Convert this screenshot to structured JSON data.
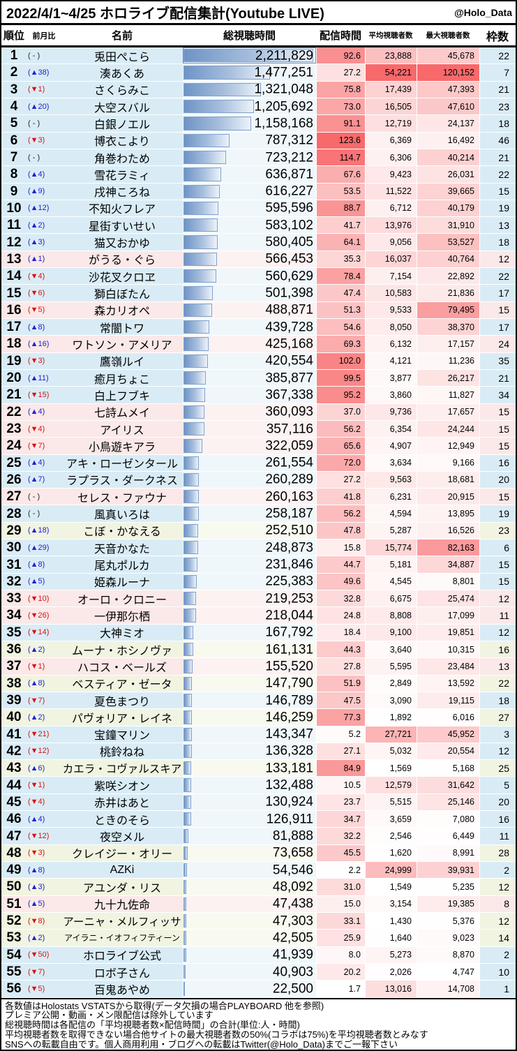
{
  "page": {
    "title": "2022/4/1~4/25 ホロライブ配信集計(Youtube LIVE)",
    "handle": "@Holo_Data"
  },
  "colors": {
    "group_fill": {
      "jp": "#d9ecf6",
      "en": "#fbe8e8",
      "id": "#f0f4e1"
    },
    "bar_cell_fill": {
      "jp": "#eff7fb",
      "en": "#fdf2f2",
      "id": "#f8faf0"
    },
    "heat_max": "#f8696b",
    "heat_min": "#ffffff",
    "bar_color": "#6e93c5",
    "bar_border": "#7fa1cd",
    "up_color": "#2222cc",
    "down_color": "#dd1111"
  },
  "chart_data": {
    "type": "table",
    "title": "2022/4/1~4/25 ホロライブ配信集計(Youtube LIVE)",
    "columns": [
      "順位",
      "前月比",
      "名前",
      "総視聴時間",
      "配信時間",
      "平均視聴者数",
      "最大視聴者数",
      "枠数"
    ],
    "notes": "総視聴時間 column shows a blue data bar scaled to max value; 配信時間/平均視聴者数/最大視聴者数 use white→red color scale; row fill = branch (jp/en/id)",
    "rows": [
      {
        "rank": 1,
        "change": 0,
        "name": "兎田ぺこら",
        "group": "jp",
        "view_time": 2211829,
        "hours": 92.6,
        "avg_viewers": 23888,
        "max_viewers": 45678,
        "slots": 22
      },
      {
        "rank": 2,
        "change": 38,
        "name": "湊あくあ",
        "group": "jp",
        "view_time": 1477251,
        "hours": 27.2,
        "avg_viewers": 54221,
        "max_viewers": 120152,
        "slots": 7
      },
      {
        "rank": 3,
        "change": -1,
        "name": "さくらみこ",
        "group": "jp",
        "view_time": 1321048,
        "hours": 75.8,
        "avg_viewers": 17439,
        "max_viewers": 47393,
        "slots": 21
      },
      {
        "rank": 4,
        "change": 20,
        "name": "大空スバル",
        "group": "jp",
        "view_time": 1205692,
        "hours": 73.0,
        "avg_viewers": 16505,
        "max_viewers": 47610,
        "slots": 23
      },
      {
        "rank": 5,
        "change": 0,
        "name": "白銀ノエル",
        "group": "jp",
        "view_time": 1158168,
        "hours": 91.1,
        "avg_viewers": 12719,
        "max_viewers": 24137,
        "slots": 18
      },
      {
        "rank": 6,
        "change": -3,
        "name": "博衣こより",
        "group": "jp",
        "view_time": 787312,
        "hours": 123.6,
        "avg_viewers": 6369,
        "max_viewers": 16492,
        "slots": 46
      },
      {
        "rank": 7,
        "change": 0,
        "name": "角巻わため",
        "group": "jp",
        "view_time": 723212,
        "hours": 114.7,
        "avg_viewers": 6306,
        "max_viewers": 40214,
        "slots": 21
      },
      {
        "rank": 8,
        "change": 4,
        "name": "雪花ラミィ",
        "group": "jp",
        "view_time": 636871,
        "hours": 67.6,
        "avg_viewers": 9423,
        "max_viewers": 26031,
        "slots": 22
      },
      {
        "rank": 9,
        "change": 9,
        "name": "戌神ころね",
        "group": "jp",
        "view_time": 616227,
        "hours": 53.5,
        "avg_viewers": 11522,
        "max_viewers": 39665,
        "slots": 15
      },
      {
        "rank": 10,
        "change": 12,
        "name": "不知火フレア",
        "group": "jp",
        "view_time": 595596,
        "hours": 88.7,
        "avg_viewers": 6712,
        "max_viewers": 40179,
        "slots": 19
      },
      {
        "rank": 11,
        "change": 2,
        "name": "星街すいせい",
        "group": "jp",
        "view_time": 583102,
        "hours": 41.7,
        "avg_viewers": 13976,
        "max_viewers": 31910,
        "slots": 13
      },
      {
        "rank": 12,
        "change": 3,
        "name": "猫又おかゆ",
        "group": "jp",
        "view_time": 580405,
        "hours": 64.1,
        "avg_viewers": 9056,
        "max_viewers": 53527,
        "slots": 18
      },
      {
        "rank": 13,
        "change": 1,
        "name": "がうる・ぐら",
        "group": "en",
        "view_time": 566453,
        "hours": 35.3,
        "avg_viewers": 16037,
        "max_viewers": 40764,
        "slots": 12
      },
      {
        "rank": 14,
        "change": -4,
        "name": "沙花叉クロヱ",
        "group": "jp",
        "view_time": 560629,
        "hours": 78.4,
        "avg_viewers": 7154,
        "max_viewers": 22892,
        "slots": 22
      },
      {
        "rank": 15,
        "change": -6,
        "name": "獅白ぼたん",
        "group": "jp",
        "view_time": 501398,
        "hours": 47.4,
        "avg_viewers": 10583,
        "max_viewers": 21836,
        "slots": 17
      },
      {
        "rank": 16,
        "change": -5,
        "name": "森カリオペ",
        "group": "en",
        "view_time": 488871,
        "hours": 51.3,
        "avg_viewers": 9533,
        "max_viewers": 79495,
        "slots": 15
      },
      {
        "rank": 17,
        "change": 8,
        "name": "常闇トワ",
        "group": "jp",
        "view_time": 439728,
        "hours": 54.6,
        "avg_viewers": 8050,
        "max_viewers": 38370,
        "slots": 17
      },
      {
        "rank": 18,
        "change": 16,
        "name": "ワトソン・アメリア",
        "group": "en",
        "view_time": 425168,
        "hours": 69.3,
        "avg_viewers": 6132,
        "max_viewers": 17157,
        "slots": 24
      },
      {
        "rank": 19,
        "change": -3,
        "name": "鷹嶺ルイ",
        "group": "jp",
        "view_time": 420554,
        "hours": 102.0,
        "avg_viewers": 4121,
        "max_viewers": 11236,
        "slots": 35
      },
      {
        "rank": 20,
        "change": 11,
        "name": "癒月ちょこ",
        "group": "jp",
        "view_time": 385877,
        "hours": 99.5,
        "avg_viewers": 3877,
        "max_viewers": 26217,
        "slots": 21
      },
      {
        "rank": 21,
        "change": -15,
        "name": "白上フブキ",
        "group": "jp",
        "view_time": 367338,
        "hours": 95.2,
        "avg_viewers": 3860,
        "max_viewers": 11827,
        "slots": 34
      },
      {
        "rank": 22,
        "change": 4,
        "name": "七詩ムメイ",
        "group": "en",
        "view_time": 360093,
        "hours": 37.0,
        "avg_viewers": 9736,
        "max_viewers": 17657,
        "slots": 15
      },
      {
        "rank": 23,
        "change": -4,
        "name": "アイリス",
        "group": "en",
        "view_time": 357116,
        "hours": 56.2,
        "avg_viewers": 6354,
        "max_viewers": 24244,
        "slots": 15
      },
      {
        "rank": 24,
        "change": -7,
        "name": "小鳥遊キアラ",
        "group": "en",
        "view_time": 322059,
        "hours": 65.6,
        "avg_viewers": 4907,
        "max_viewers": 12949,
        "slots": 15
      },
      {
        "rank": 25,
        "change": 4,
        "name": "アキ・ローゼンタール",
        "group": "jp",
        "view_time": 261554,
        "hours": 72.0,
        "avg_viewers": 3634,
        "max_viewers": 9166,
        "slots": 16
      },
      {
        "rank": 26,
        "change": 7,
        "name": "ラプラス・ダークネス",
        "group": "jp",
        "view_time": 260289,
        "hours": 27.2,
        "avg_viewers": 9563,
        "max_viewers": 18681,
        "slots": 20
      },
      {
        "rank": 27,
        "change": 0,
        "name": "セレス・ファウナ",
        "group": "en",
        "view_time": 260163,
        "hours": 41.8,
        "avg_viewers": 6231,
        "max_viewers": 20915,
        "slots": 15
      },
      {
        "rank": 28,
        "change": 0,
        "name": "風真いろは",
        "group": "jp",
        "view_time": 258187,
        "hours": 56.2,
        "avg_viewers": 4594,
        "max_viewers": 13895,
        "slots": 19
      },
      {
        "rank": 29,
        "change": 18,
        "name": "こぼ・かなえる",
        "group": "id",
        "view_time": 252510,
        "hours": 47.8,
        "avg_viewers": 5287,
        "max_viewers": 16526,
        "slots": 23
      },
      {
        "rank": 30,
        "change": 29,
        "name": "天音かなた",
        "group": "jp",
        "view_time": 248873,
        "hours": 15.8,
        "avg_viewers": 15774,
        "max_viewers": 82163,
        "slots": 6
      },
      {
        "rank": 31,
        "change": 8,
        "name": "尾丸ポルカ",
        "group": "jp",
        "view_time": 231846,
        "hours": 44.7,
        "avg_viewers": 5181,
        "max_viewers": 34887,
        "slots": 15
      },
      {
        "rank": 32,
        "change": 5,
        "name": "姫森ルーナ",
        "group": "jp",
        "view_time": 225383,
        "hours": 49.6,
        "avg_viewers": 4545,
        "max_viewers": 8801,
        "slots": 15
      },
      {
        "rank": 33,
        "change": -10,
        "name": "オーロ・クロニー",
        "group": "en",
        "view_time": 219253,
        "hours": 32.8,
        "avg_viewers": 6675,
        "max_viewers": 25474,
        "slots": 12
      },
      {
        "rank": 34,
        "change": -26,
        "name": "一伊那尓栖",
        "group": "en",
        "view_time": 218044,
        "hours": 24.8,
        "avg_viewers": 8808,
        "max_viewers": 17099,
        "slots": 11
      },
      {
        "rank": 35,
        "change": -14,
        "name": "大神ミオ",
        "group": "jp",
        "view_time": 167792,
        "hours": 18.4,
        "avg_viewers": 9100,
        "max_viewers": 19851,
        "slots": 12
      },
      {
        "rank": 36,
        "change": 2,
        "name": "ムーナ・ホシノヴァ",
        "group": "id",
        "view_time": 161131,
        "hours": 44.3,
        "avg_viewers": 3640,
        "max_viewers": 10315,
        "slots": 16
      },
      {
        "rank": 37,
        "change": -1,
        "name": "ハコス・ベールズ",
        "group": "en",
        "view_time": 155520,
        "hours": 27.8,
        "avg_viewers": 5595,
        "max_viewers": 23484,
        "slots": 13
      },
      {
        "rank": 38,
        "change": 8,
        "name": "ベスティア・ゼータ",
        "group": "id",
        "view_time": 147790,
        "hours": 51.9,
        "avg_viewers": 2849,
        "max_viewers": 13592,
        "slots": 22
      },
      {
        "rank": 39,
        "change": -7,
        "name": "夏色まつり",
        "group": "jp",
        "view_time": 146789,
        "hours": 47.5,
        "avg_viewers": 3090,
        "max_viewers": 19115,
        "slots": 18
      },
      {
        "rank": 40,
        "change": 2,
        "name": "パヴォリア・レイネ",
        "group": "id",
        "view_time": 146259,
        "hours": 77.3,
        "avg_viewers": 1892,
        "max_viewers": 6016,
        "slots": 27
      },
      {
        "rank": 41,
        "change": -21,
        "name": "宝鐘マリン",
        "group": "jp",
        "view_time": 143347,
        "hours": 5.2,
        "avg_viewers": 27721,
        "max_viewers": 45952,
        "slots": 3
      },
      {
        "rank": 42,
        "change": -12,
        "name": "桃鈴ねね",
        "group": "jp",
        "view_time": 136328,
        "hours": 27.1,
        "avg_viewers": 5032,
        "max_viewers": 20554,
        "slots": 12
      },
      {
        "rank": 43,
        "change": 6,
        "name": "カエラ・コヴァルスキア",
        "group": "id",
        "view_time": 133181,
        "hours": 84.9,
        "avg_viewers": 1569,
        "max_viewers": 5168,
        "slots": 25
      },
      {
        "rank": 44,
        "change": -1,
        "name": "紫咲シオン",
        "group": "jp",
        "view_time": 132488,
        "hours": 10.5,
        "avg_viewers": 12579,
        "max_viewers": 31642,
        "slots": 5
      },
      {
        "rank": 45,
        "change": -4,
        "name": "赤井はあと",
        "group": "jp",
        "view_time": 130924,
        "hours": 23.7,
        "avg_viewers": 5515,
        "max_viewers": 25146,
        "slots": 20
      },
      {
        "rank": 46,
        "change": 4,
        "name": "ときのそら",
        "group": "jp",
        "view_time": 126911,
        "hours": 34.7,
        "avg_viewers": 3659,
        "max_viewers": 7080,
        "slots": 16
      },
      {
        "rank": 47,
        "change": -12,
        "name": "夜空メル",
        "group": "jp",
        "view_time": 81888,
        "hours": 32.2,
        "avg_viewers": 2546,
        "max_viewers": 6449,
        "slots": 11
      },
      {
        "rank": 48,
        "change": -3,
        "name": "クレイジー・オリー",
        "group": "id",
        "view_time": 73658,
        "hours": 45.5,
        "avg_viewers": 1620,
        "max_viewers": 8991,
        "slots": 28
      },
      {
        "rank": 49,
        "change": 8,
        "name": "AZKi",
        "group": "jp",
        "view_time": 54546,
        "hours": 2.2,
        "avg_viewers": 24999,
        "max_viewers": 39931,
        "slots": 2
      },
      {
        "rank": 50,
        "change": 3,
        "name": "アユンダ・リス",
        "group": "id",
        "view_time": 48092,
        "hours": 31.0,
        "avg_viewers": 1549,
        "max_viewers": 5235,
        "slots": 12
      },
      {
        "rank": 51,
        "change": 5,
        "name": "九十九佐命",
        "group": "en",
        "view_time": 47438,
        "hours": 15.0,
        "avg_viewers": 3154,
        "max_viewers": 19385,
        "slots": 8
      },
      {
        "rank": 52,
        "change": -8,
        "name": "アーニャ・メルフィッサ",
        "group": "id",
        "view_time": 47303,
        "hours": 33.1,
        "avg_viewers": 1430,
        "max_viewers": 5376,
        "slots": 12
      },
      {
        "rank": 53,
        "change": 2,
        "name": "アイラニ・イオフィフティーン",
        "group": "id",
        "view_time": 42505,
        "hours": 25.9,
        "avg_viewers": 1640,
        "max_viewers": 9023,
        "slots": 14
      },
      {
        "rank": 54,
        "change": -50,
        "name": "ホロライブ公式",
        "group": "jp",
        "view_time": 41939,
        "hours": 8.0,
        "avg_viewers": 5273,
        "max_viewers": 8870,
        "slots": 2
      },
      {
        "rank": 55,
        "change": -7,
        "name": "ロボ子さん",
        "group": "jp",
        "view_time": 40903,
        "hours": 20.2,
        "avg_viewers": 2026,
        "max_viewers": 4747,
        "slots": 10
      },
      {
        "rank": 56,
        "change": -5,
        "name": "百鬼あやめ",
        "group": "jp",
        "view_time": 22500,
        "hours": 1.7,
        "avg_viewers": 13016,
        "max_viewers": 14708,
        "slots": 1
      }
    ]
  },
  "footer": {
    "lines": [
      "各数値はHolostats VSTATSから取得(データ欠損の場合PLAYBOARD 他を参照)",
      "プレミア公開・動画・メン限配信は除外しています",
      "総視聴時間は各配信の「平均視聴者数×配信時間」の合計(単位:人・時間)",
      "平均視聴者数を取得できない場合他サイトの最大視聴者数の50%(コラボは75%)を平均視聴者数とみなす",
      "SNSへの転載自由です。個人商用利用・ブログへの転載はTwitter(@Holo_Data)までご一報下さい"
    ]
  }
}
